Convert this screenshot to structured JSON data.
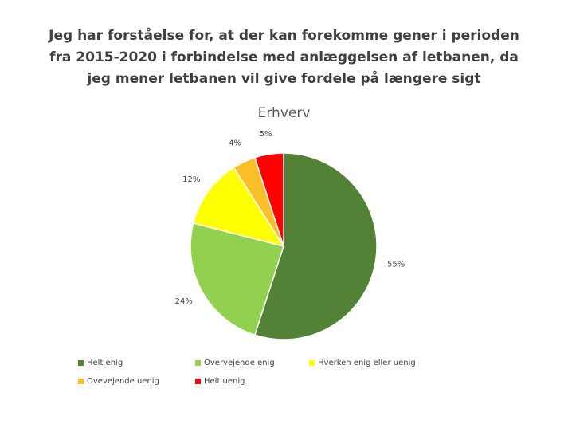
{
  "chart_data": {
    "type": "pie",
    "title": "Jeg har forståelse for, at der kan forekomme gener i perioden fra 2015-2020 i forbindelse med anlæggelsen af letbanen, da jeg mener letbanen vil give fordele på længere sigt",
    "subtitle": "Erhverv",
    "categories": [
      "Helt enig",
      "Overvejende enig",
      "Hverken enig eller uenig",
      "Ovevejende uenig",
      "Helt uenig"
    ],
    "values": [
      55,
      24,
      12,
      4,
      5
    ],
    "labels": [
      "55%",
      "24%",
      "12%",
      "4%",
      "5%"
    ],
    "colors": [
      "#538135",
      "#92d050",
      "#ffff00",
      "#fbbf2a",
      "#ff0000"
    ],
    "legend_position": "bottom"
  }
}
